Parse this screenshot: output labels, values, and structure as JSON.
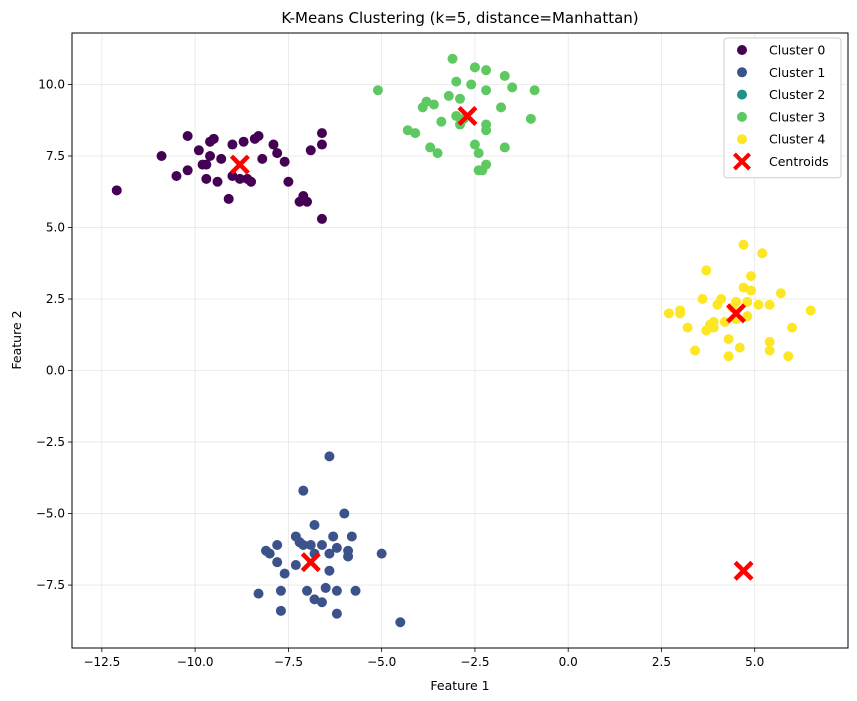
{
  "chart_data": {
    "type": "scatter",
    "title": "K-Means Clustering (k=5, distance=Manhattan)",
    "xlabel": "Feature 1",
    "ylabel": "Feature 2",
    "xlim": [
      -13.3,
      7.5
    ],
    "ylim": [
      -9.7,
      11.8
    ],
    "xticks": [
      -12.5,
      -10.0,
      -7.5,
      -5.0,
      -2.5,
      0.0,
      2.5,
      5.0
    ],
    "yticks": [
      -7.5,
      -5.0,
      -2.5,
      0.0,
      2.5,
      5.0,
      7.5,
      10.0
    ],
    "xtick_labels": [
      "−12.5",
      "−10.0",
      "−7.5",
      "−5.0",
      "−2.5",
      "0.0",
      "2.5",
      "5.0"
    ],
    "ytick_labels": [
      "−7.5",
      "−5.0",
      "−2.5",
      "0.0",
      "2.5",
      "5.0",
      "7.5",
      "10.0"
    ],
    "grid": true,
    "legend_position": "top-right",
    "series": [
      {
        "name": "Cluster 0",
        "color": "#440154",
        "points": [
          [
            -12.1,
            6.3
          ],
          [
            -10.9,
            7.5
          ],
          [
            -10.5,
            6.8
          ],
          [
            -10.2,
            8.2
          ],
          [
            -10.2,
            7.0
          ],
          [
            -9.9,
            7.7
          ],
          [
            -9.8,
            7.2
          ],
          [
            -9.7,
            7.2
          ],
          [
            -9.7,
            6.7
          ],
          [
            -9.6,
            7.5
          ],
          [
            -9.6,
            8.0
          ],
          [
            -9.5,
            8.1
          ],
          [
            -9.4,
            6.6
          ],
          [
            -9.3,
            7.4
          ],
          [
            -9.1,
            6.0
          ],
          [
            -9.0,
            6.8
          ],
          [
            -9.0,
            7.9
          ],
          [
            -8.8,
            6.7
          ],
          [
            -8.7,
            8.0
          ],
          [
            -8.6,
            6.7
          ],
          [
            -8.5,
            6.6
          ],
          [
            -8.4,
            8.1
          ],
          [
            -8.3,
            8.2
          ],
          [
            -8.2,
            7.4
          ],
          [
            -7.9,
            7.9
          ],
          [
            -7.8,
            7.6
          ],
          [
            -7.6,
            7.3
          ],
          [
            -7.5,
            6.6
          ],
          [
            -7.2,
            5.9
          ],
          [
            -7.1,
            6.1
          ],
          [
            -7.0,
            5.9
          ],
          [
            -6.9,
            7.7
          ],
          [
            -6.6,
            8.3
          ],
          [
            -6.6,
            7.9
          ],
          [
            -6.6,
            5.3
          ]
        ]
      },
      {
        "name": "Cluster 1",
        "color": "#3b528b",
        "points": [
          [
            -8.3,
            -7.8
          ],
          [
            -8.1,
            -6.3
          ],
          [
            -8.0,
            -6.4
          ],
          [
            -7.8,
            -6.1
          ],
          [
            -7.8,
            -6.7
          ],
          [
            -7.7,
            -7.7
          ],
          [
            -7.7,
            -8.4
          ],
          [
            -7.6,
            -7.1
          ],
          [
            -7.3,
            -6.8
          ],
          [
            -7.3,
            -5.8
          ],
          [
            -7.2,
            -6.0
          ],
          [
            -7.1,
            -4.2
          ],
          [
            -7.1,
            -6.1
          ],
          [
            -7.0,
            -7.7
          ],
          [
            -6.9,
            -6.1
          ],
          [
            -6.8,
            -5.4
          ],
          [
            -6.8,
            -6.4
          ],
          [
            -6.8,
            -8.0
          ],
          [
            -6.6,
            -6.1
          ],
          [
            -6.6,
            -8.1
          ],
          [
            -6.5,
            -7.6
          ],
          [
            -6.4,
            -6.4
          ],
          [
            -6.4,
            -7.0
          ],
          [
            -6.3,
            -5.8
          ],
          [
            -6.2,
            -6.2
          ],
          [
            -6.2,
            -7.7
          ],
          [
            -6.2,
            -8.5
          ],
          [
            -6.0,
            -5.0
          ],
          [
            -5.9,
            -6.3
          ],
          [
            -5.9,
            -6.5
          ],
          [
            -5.8,
            -5.8
          ],
          [
            -5.7,
            -7.7
          ],
          [
            -5.0,
            -6.4
          ],
          [
            -4.5,
            -8.8
          ],
          [
            -6.4,
            -3.0
          ]
        ]
      },
      {
        "name": "Cluster 2",
        "color": "#21918c",
        "points": []
      },
      {
        "name": "Cluster 3",
        "color": "#5ec962",
        "points": [
          [
            -5.1,
            9.8
          ],
          [
            -4.3,
            8.4
          ],
          [
            -4.1,
            8.3
          ],
          [
            -3.9,
            9.2
          ],
          [
            -3.8,
            9.4
          ],
          [
            -3.7,
            7.8
          ],
          [
            -3.6,
            9.3
          ],
          [
            -3.5,
            7.6
          ],
          [
            -3.4,
            8.7
          ],
          [
            -3.2,
            9.6
          ],
          [
            -3.1,
            10.9
          ],
          [
            -3.0,
            8.9
          ],
          [
            -3.0,
            10.1
          ],
          [
            -2.9,
            9.5
          ],
          [
            -2.9,
            8.6
          ],
          [
            -2.8,
            8.8
          ],
          [
            -2.6,
            10.0
          ],
          [
            -2.5,
            10.6
          ],
          [
            -2.5,
            7.9
          ],
          [
            -2.4,
            7.6
          ],
          [
            -2.4,
            7.0
          ],
          [
            -2.3,
            7.0
          ],
          [
            -2.2,
            7.2
          ],
          [
            -2.2,
            8.4
          ],
          [
            -2.2,
            8.6
          ],
          [
            -2.2,
            9.8
          ],
          [
            -2.2,
            10.5
          ],
          [
            -1.8,
            9.2
          ],
          [
            -1.7,
            10.3
          ],
          [
            -1.7,
            7.8
          ],
          [
            -1.5,
            9.9
          ],
          [
            -1.0,
            8.8
          ],
          [
            -0.9,
            9.8
          ]
        ]
      },
      {
        "name": "Cluster 4",
        "color": "#fde725",
        "points": [
          [
            2.7,
            2.0
          ],
          [
            3.0,
            2.1
          ],
          [
            3.0,
            2.0
          ],
          [
            3.2,
            1.5
          ],
          [
            3.4,
            0.7
          ],
          [
            3.6,
            2.5
          ],
          [
            3.7,
            1.4
          ],
          [
            3.7,
            3.5
          ],
          [
            3.8,
            1.6
          ],
          [
            3.9,
            1.5
          ],
          [
            3.9,
            1.7
          ],
          [
            4.0,
            2.3
          ],
          [
            4.1,
            2.5
          ],
          [
            4.2,
            1.7
          ],
          [
            4.3,
            0.5
          ],
          [
            4.3,
            1.1
          ],
          [
            4.4,
            2.2
          ],
          [
            4.5,
            2.4
          ],
          [
            4.5,
            1.8
          ],
          [
            4.6,
            0.8
          ],
          [
            4.7,
            4.4
          ],
          [
            4.7,
            2.9
          ],
          [
            4.8,
            2.4
          ],
          [
            4.8,
            1.9
          ],
          [
            4.9,
            3.3
          ],
          [
            4.9,
            2.8
          ],
          [
            5.1,
            2.3
          ],
          [
            5.2,
            4.1
          ],
          [
            5.4,
            2.3
          ],
          [
            5.4,
            1.0
          ],
          [
            5.4,
            0.7
          ],
          [
            5.7,
            2.7
          ],
          [
            5.9,
            0.5
          ],
          [
            6.0,
            1.5
          ],
          [
            6.5,
            2.1
          ]
        ]
      }
    ],
    "centroids": {
      "name": "Centroids",
      "color": "#ff0000",
      "marker": "X",
      "points": [
        [
          -8.8,
          7.2
        ],
        [
          -6.9,
          -6.7
        ],
        [
          -2.7,
          8.9
        ],
        [
          4.5,
          2.0
        ],
        [
          4.7,
          -7.0
        ]
      ]
    }
  }
}
